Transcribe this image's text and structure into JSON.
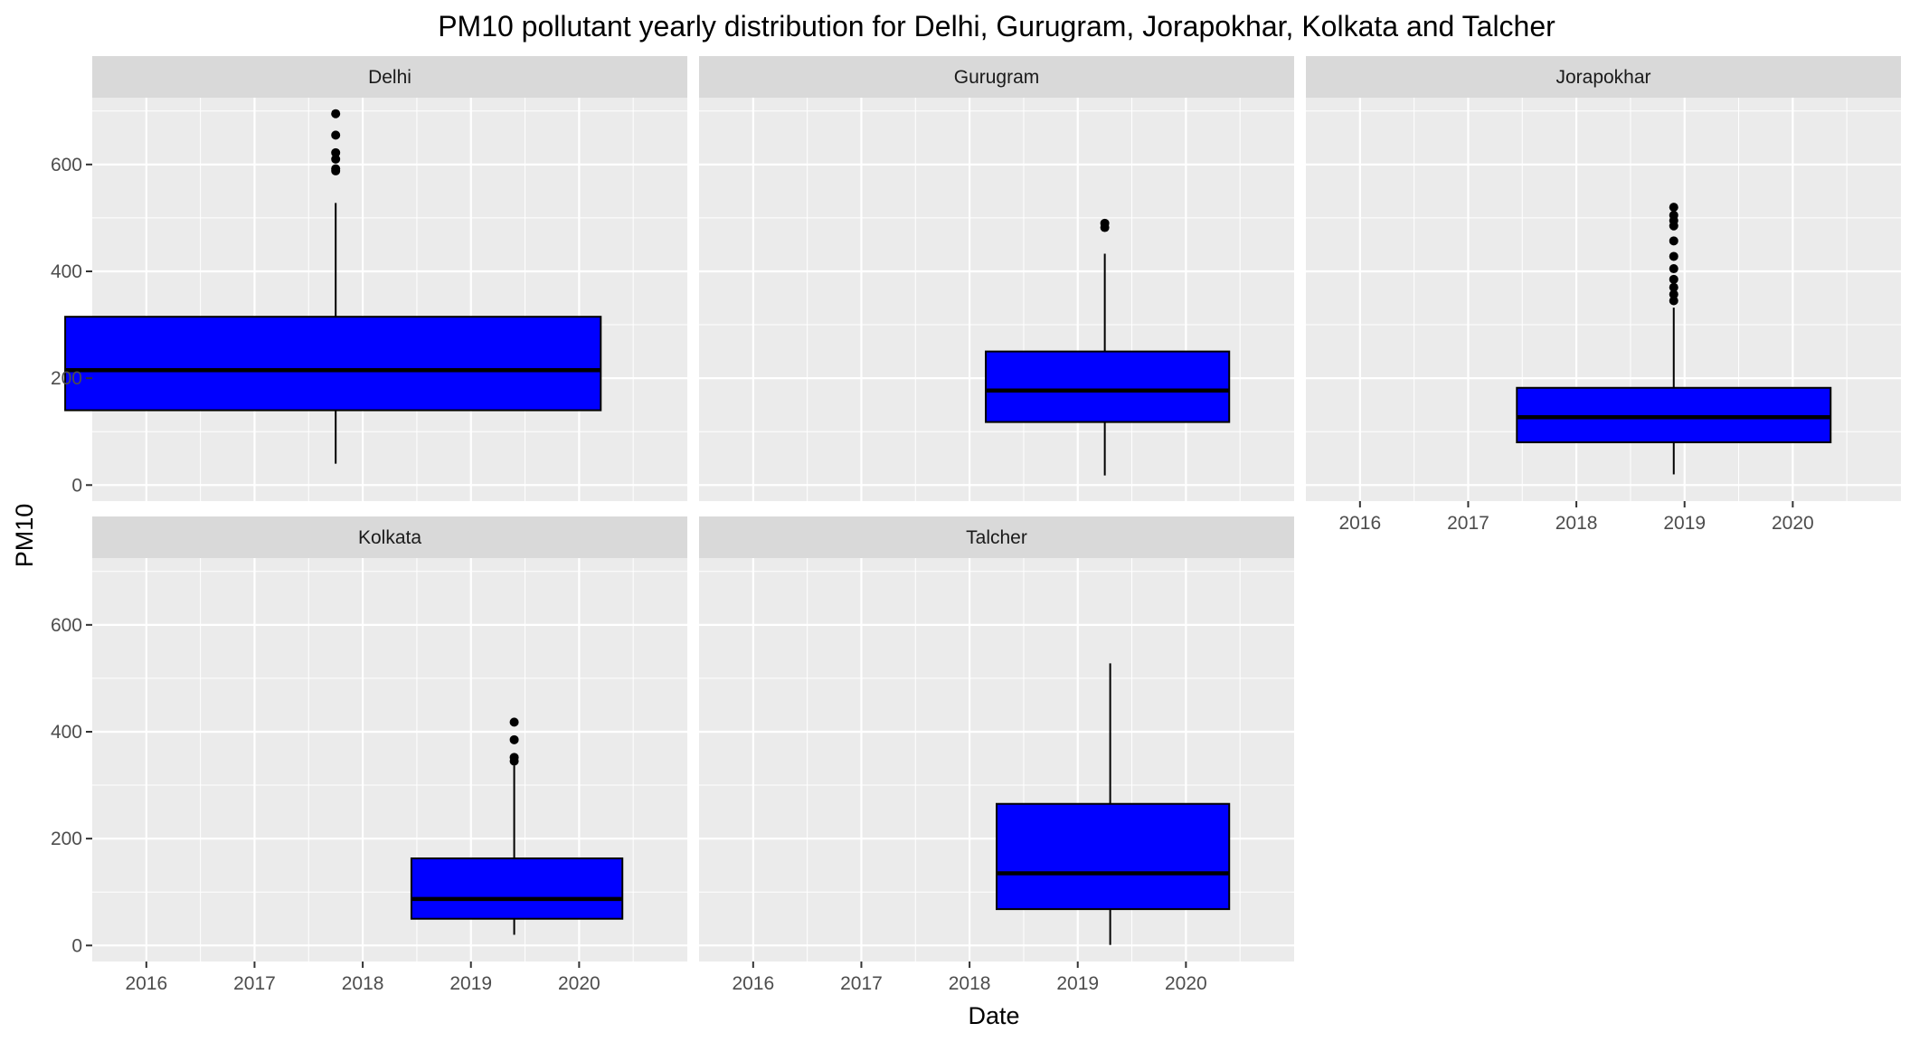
{
  "chart_data": {
    "type": "boxplot",
    "title": "PM10 pollutant yearly distribution for Delhi, Gurugram, Jorapokhar, Kolkata and Talcher",
    "xlabel": "Date",
    "ylabel": "PM10",
    "x_ticks": [
      "2016",
      "2017",
      "2018",
      "2019",
      "2020"
    ],
    "x_tick_years": [
      2016,
      2017,
      2018,
      2019,
      2020
    ],
    "xlim": [
      2015.5,
      2021.0
    ],
    "y_ticks": [
      0,
      200,
      400,
      600
    ],
    "ylim": [
      -30,
      725
    ],
    "grid": true,
    "colors": {
      "box_fill": "#0000ff",
      "panel_bg": "#ebebeb",
      "strip_bg": "#d9d9d9",
      "grid": "#ffffff",
      "outline": "#000000"
    },
    "facets": [
      {
        "name": "Delhi",
        "x_start": 2015.25,
        "x_end": 2020.2,
        "x_center": 2017.75,
        "whisker_low": 40,
        "q1": 140,
        "median": 215,
        "q3": 315,
        "whisker_high": 528,
        "outliers": [
          588,
          592,
          610,
          622,
          655,
          695
        ]
      },
      {
        "name": "Gurugram",
        "x_start": 2018.15,
        "x_end": 2020.4,
        "x_center": 2019.25,
        "whisker_low": 18,
        "q1": 118,
        "median": 177,
        "q3": 250,
        "whisker_high": 433,
        "outliers": [
          482,
          490
        ]
      },
      {
        "name": "Jorapokhar",
        "x_start": 2017.45,
        "x_end": 2020.35,
        "x_center": 2018.9,
        "whisker_low": 20,
        "q1": 80,
        "median": 127,
        "q3": 182,
        "whisker_high": 332,
        "outliers": [
          345,
          357,
          370,
          385,
          405,
          428,
          457,
          485,
          495,
          505,
          520
        ]
      },
      {
        "name": "Kolkata",
        "x_start": 2018.45,
        "x_end": 2020.4,
        "x_center": 2019.4,
        "whisker_low": 20,
        "q1": 50,
        "median": 87,
        "q3": 163,
        "whisker_high": 337,
        "outliers": [
          345,
          352,
          385,
          418
        ]
      },
      {
        "name": "Talcher",
        "x_start": 2018.25,
        "x_end": 2020.4,
        "x_center": 2019.3,
        "whisker_low": 1,
        "q1": 68,
        "median": 135,
        "q3": 265,
        "whisker_high": 528,
        "outliers": []
      }
    ]
  }
}
